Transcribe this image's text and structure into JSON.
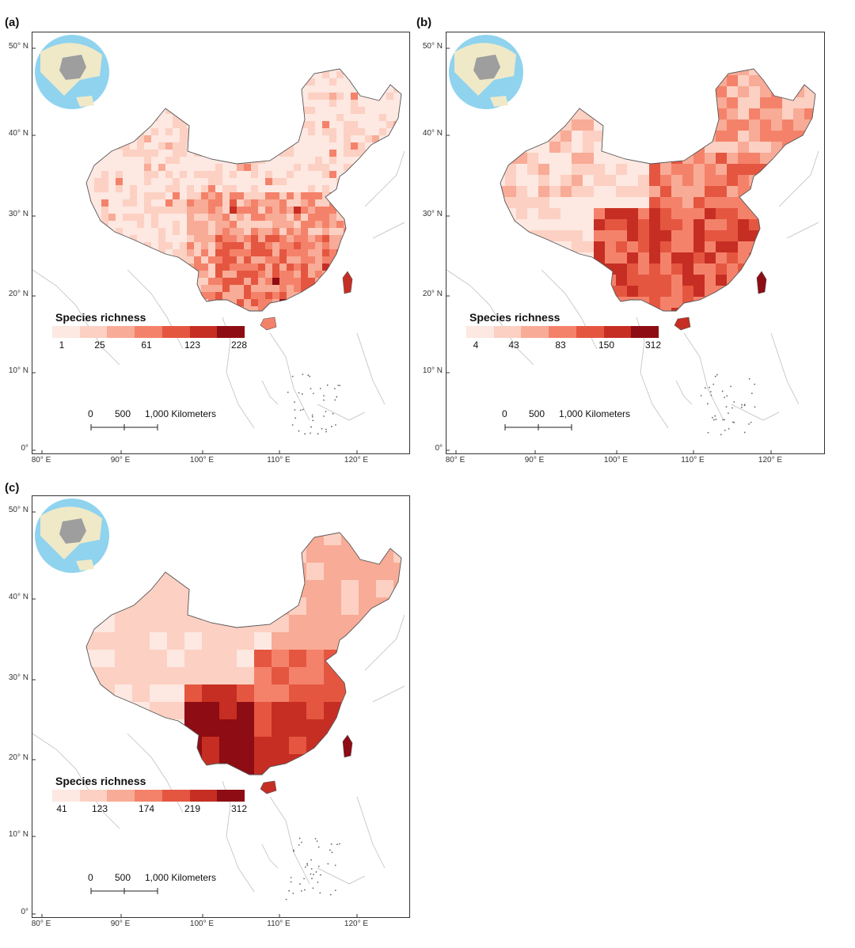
{
  "panels": [
    {
      "label": "(a)",
      "legend_title": "Species richness",
      "legend_values": [
        "1",
        "25",
        "61",
        "123",
        "228"
      ],
      "legend_colors": [
        "#fde8e2",
        "#fcd0c2",
        "#f8ab96",
        "#f4826a",
        "#e55640",
        "#c62e23",
        "#8e0c13"
      ]
    },
    {
      "label": "(b)",
      "legend_title": "Species richness",
      "legend_values": [
        "4",
        "43",
        "83",
        "150",
        "312"
      ],
      "legend_colors": [
        "#fde8e2",
        "#fcd0c2",
        "#f8ab96",
        "#f4826a",
        "#e55640",
        "#c62e23",
        "#8e0c13"
      ]
    },
    {
      "label": "(c)",
      "legend_title": "Species richness",
      "legend_values": [
        "41",
        "123",
        "174",
        "219",
        "312"
      ],
      "legend_colors": [
        "#fde8e2",
        "#fcd0c2",
        "#f8ab96",
        "#f4826a",
        "#e55640",
        "#c62e23",
        "#8e0c13"
      ]
    }
  ],
  "lat_ticks": [
    "50° N",
    "40° N",
    "30° N",
    "20° N",
    "10° N",
    "0°"
  ],
  "lon_ticks": [
    "80° E",
    "90° E",
    "100° E",
    "110° E",
    "120° E"
  ],
  "scale": {
    "v0": "0",
    "v1": "500",
    "v2": "1,000 Kilometers"
  },
  "colors": {
    "ocean": "#8fd3ee",
    "land_globe": "#efe9c8",
    "china_globe": "#9e9e9e",
    "outline": "#bfbfbf"
  }
}
